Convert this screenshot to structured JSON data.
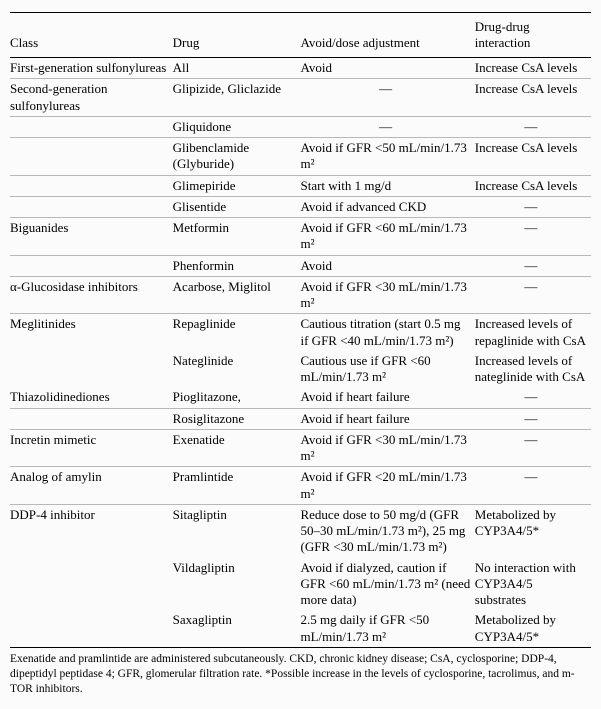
{
  "columns": [
    "Class",
    "Drug",
    "Avoid/dose adjustment",
    "Drug-drug interaction"
  ],
  "rows": [
    {
      "class": "First-generation sulfonylureas",
      "drug": "All",
      "adj": "Avoid",
      "ddi": "Increase CsA levels"
    },
    {
      "class": "Second-generation sulfonylureas",
      "drug": "Glipizide, Gliclazide",
      "adj": "—",
      "ddi": "Increase CsA levels"
    },
    {
      "class": "",
      "drug": "Gliquidone",
      "adj": "—",
      "ddi": "—"
    },
    {
      "class": "",
      "drug": "Glibenclamide (Glyburide)",
      "adj": "Avoid if GFR <50 mL/min/1.73 m²",
      "ddi": "Increase CsA levels"
    },
    {
      "class": "",
      "drug": "Glimepiride",
      "adj": "Start with 1 mg/d",
      "ddi": "Increase CsA levels"
    },
    {
      "class": "",
      "drug": "Glisentide",
      "adj": "Avoid if advanced CKD",
      "ddi": "—"
    },
    {
      "class": "Biguanides",
      "drug": "Metformin",
      "adj": "Avoid if GFR <60 mL/min/1.73 m²",
      "ddi": "—"
    },
    {
      "class": "",
      "drug": "Phenformin",
      "adj": "Avoid",
      "ddi": "—"
    },
    {
      "class": "α-Glucosidase inhibitors",
      "drug": "Acarbose, Miglitol",
      "adj": "Avoid if GFR <30 mL/min/1.73 m²",
      "ddi": "—"
    },
    {
      "class": "Meglitinides",
      "drug": "Repaglinide",
      "adj": "Cautious titration (start 0.5 mg if GFR <40 mL/min/1.73 m²)",
      "ddi": "Increased levels of repaglinide with CsA"
    },
    {
      "class": "",
      "drug": "Nateglinide",
      "adj": "Cautious use if GFR <60 mL/min/1.73 m²",
      "ddi": "Increased levels of nateglinide with CsA"
    },
    {
      "class": "Thiazolidinediones",
      "drug": "Pioglitazone,",
      "adj": "Avoid if heart failure",
      "ddi": "—"
    },
    {
      "class": "",
      "drug": "Rosiglitazone",
      "adj": "Avoid if heart failure",
      "ddi": "—"
    },
    {
      "class": "Incretin mimetic",
      "drug": "Exenatide",
      "adj": "Avoid if GFR <30 mL/min/1.73 m²",
      "ddi": "—"
    },
    {
      "class": "Analog of amylin",
      "drug": "Pramlintide",
      "adj": "Avoid if GFR <20 mL/min/1.73 m²",
      "ddi": "—"
    },
    {
      "class": "DDP-4 inhibitor",
      "drug": "Sitagliptin",
      "adj": "Reduce dose to 50 mg/d (GFR 50–30 mL/min/1.73 m²), 25 mg (GFR <30 mL/min/1.73 m²)",
      "ddi": "Metabolized by CYP3A4/5*"
    },
    {
      "class": "",
      "drug": "Vildagliptin",
      "adj": "Avoid if dialyzed, caution if GFR <60 mL/min/1.73 m² (need more data)",
      "ddi": "No interaction with CYP3A4/5 substrates"
    },
    {
      "class": "",
      "drug": "Saxagliptin",
      "adj": "2.5 mg daily if GFR <50 mL/min/1.73 m²",
      "ddi": "Metabolized by CYP3A4/5*"
    }
  ],
  "multiline": {
    "9": {
      "adj": true,
      "ddi": true
    },
    "10": {
      "ddi": true
    },
    "15": {
      "adj": true
    },
    "16": {
      "adj": true,
      "ddi": true
    }
  },
  "footnote": "Exenatide and pramlintide are administered subcutaneously. CKD, chronic kidney disease; CsA, cyclosporine; DDP-4, dipeptidyl peptidase 4; GFR, glomerular filtration rate. *Possible increase in the levels of cyclosporine, tacrolimus, and m-TOR inhibitors."
}
